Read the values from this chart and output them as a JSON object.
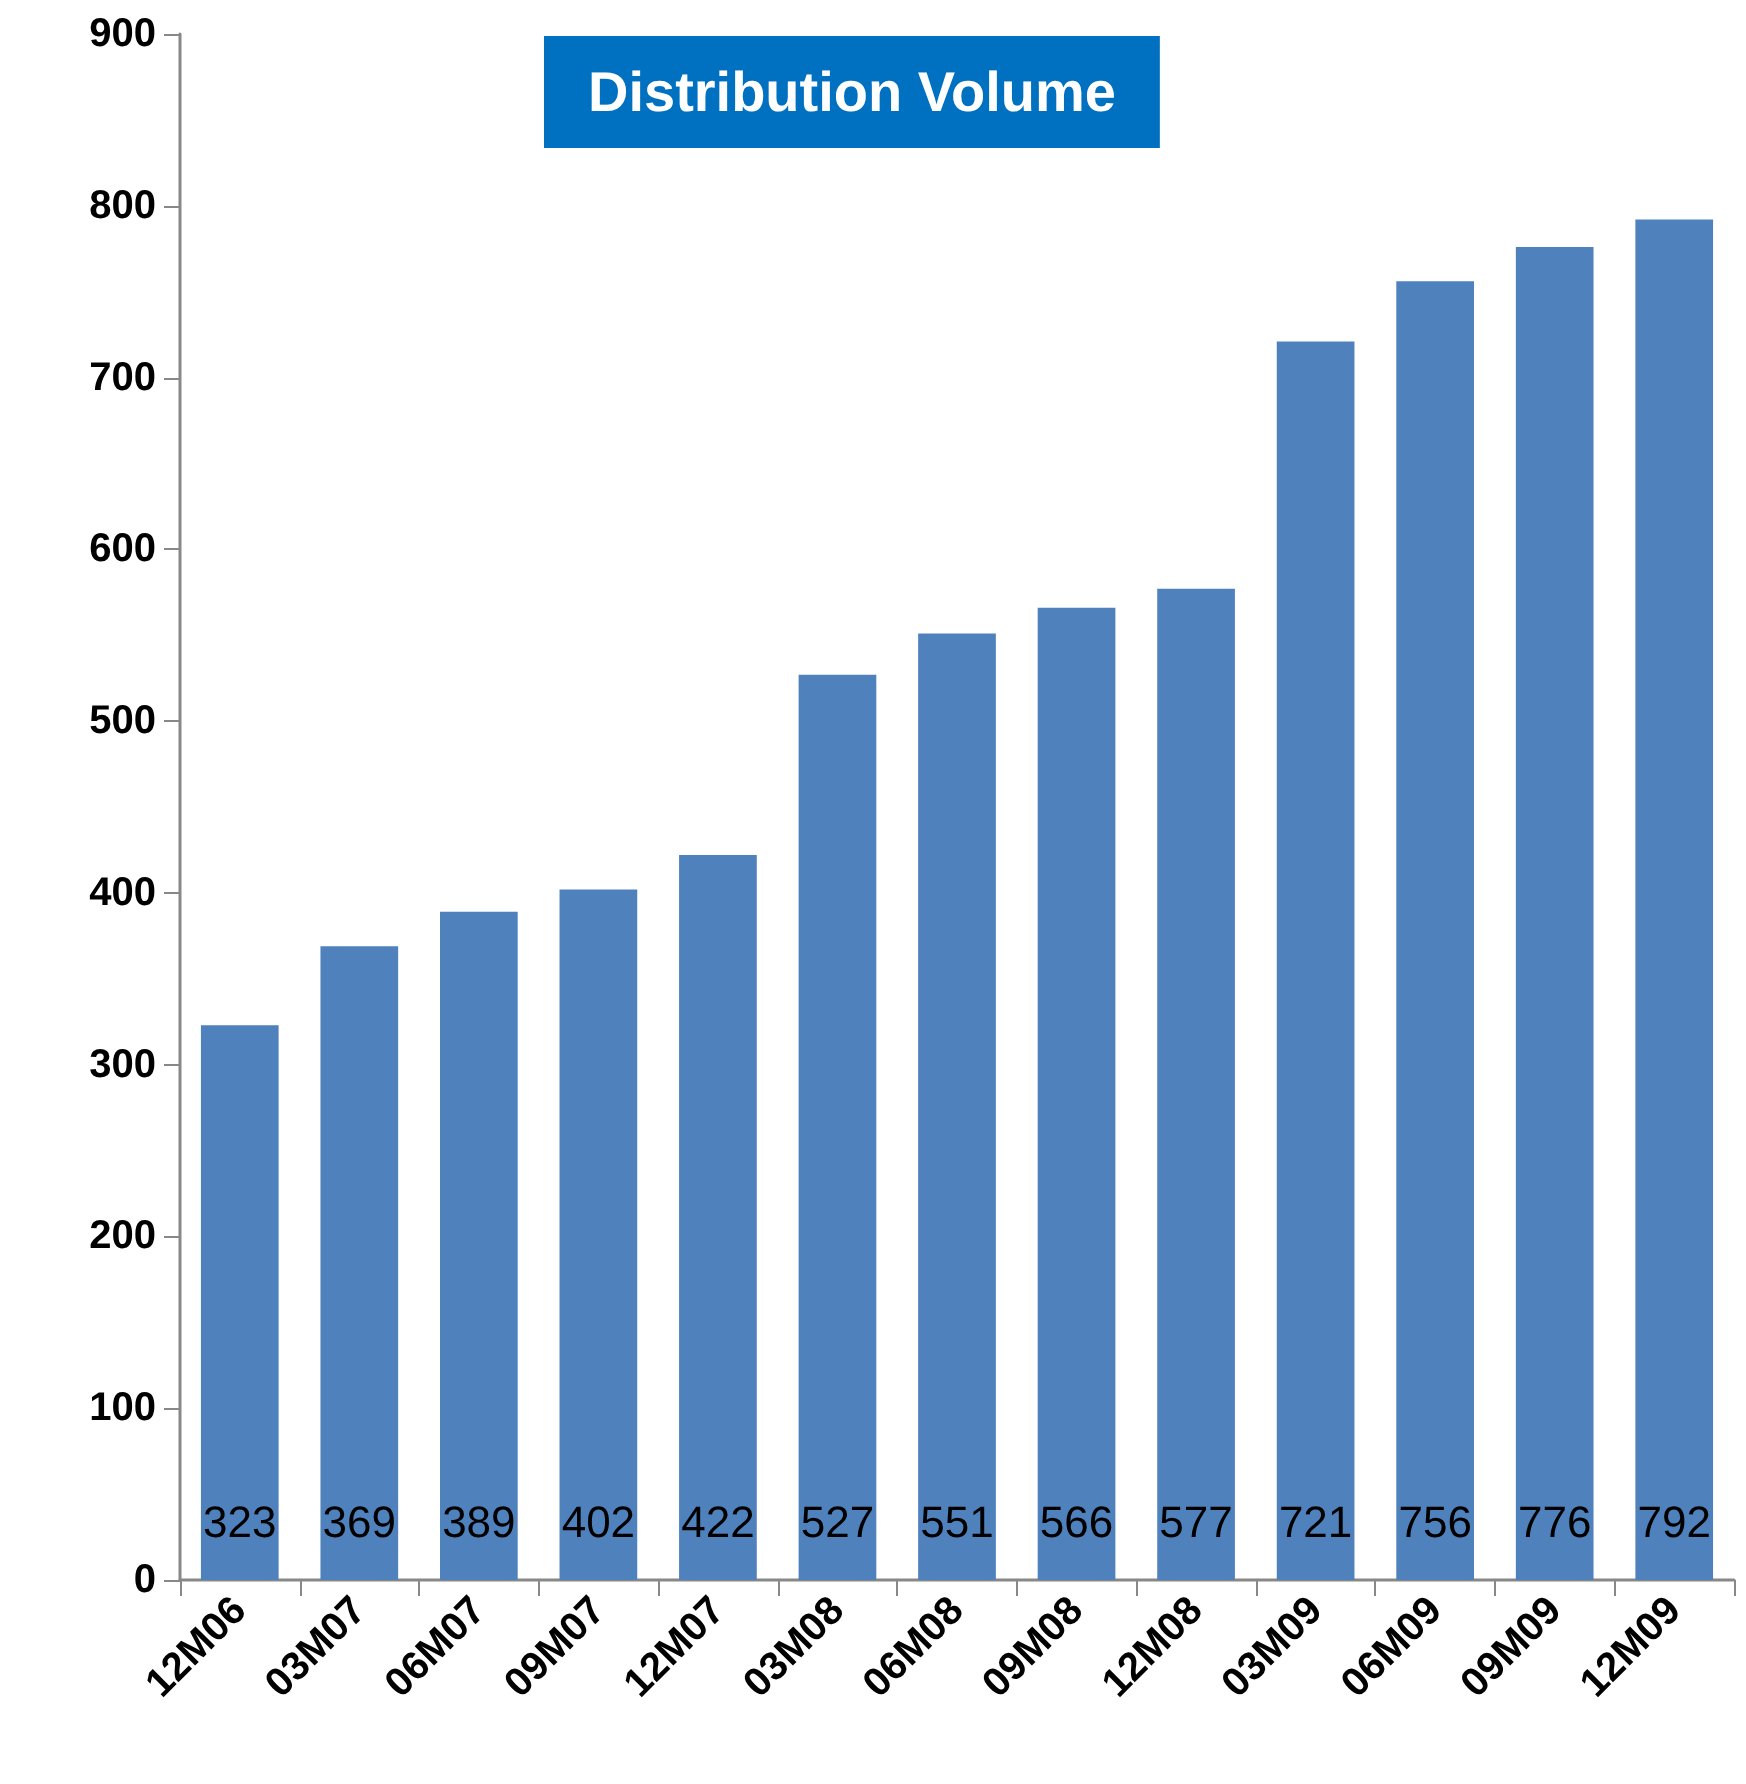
{
  "chart_data": {
    "type": "bar",
    "title": "Distribution Volume",
    "categories": [
      "12M06",
      "03M07",
      "06M07",
      "09M07",
      "12M07",
      "03M08",
      "06M08",
      "09M08",
      "12M08",
      "03M09",
      "06M09",
      "09M09",
      "12M09"
    ],
    "values": [
      323,
      369,
      389,
      402,
      422,
      527,
      551,
      566,
      577,
      721,
      756,
      776,
      792
    ],
    "color": "#4f81bd",
    "data_labels": true,
    "grid": false,
    "ylim": [
      0,
      900
    ],
    "yticks": [
      0,
      100,
      200,
      300,
      400,
      500,
      600,
      700,
      800,
      900
    ]
  }
}
